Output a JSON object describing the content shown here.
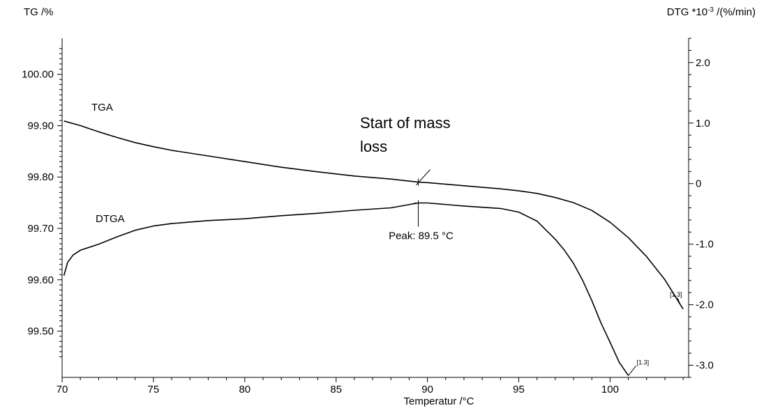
{
  "chart_data": {
    "type": "line",
    "title": "",
    "xlabel": "Temperatur /°C",
    "ylabel_left": "TG /%",
    "ylabel_right_main": "DTG *10",
    "ylabel_right_sup": "-3",
    "ylabel_right_unit": " /(%/min)",
    "xlim": [
      70,
      104.3
    ],
    "ylim_left": [
      99.41,
      100.07
    ],
    "ylim_right": [
      -3.2,
      2.4
    ],
    "x_ticks": [
      70,
      75,
      80,
      85,
      90,
      95,
      100
    ],
    "x_tick_labels": [
      "70",
      "75",
      "80",
      "85",
      "90",
      "95",
      "100"
    ],
    "y_left_ticks": [
      100.0,
      99.9,
      99.8,
      99.7,
      99.6,
      99.5
    ],
    "y_left_tick_labels": [
      "100.00",
      "99.90",
      "99.80",
      "99.70",
      "99.60",
      "99.50"
    ],
    "y_right_ticks": [
      2.0,
      1.0,
      0,
      -1.0,
      -2.0,
      -3.0
    ],
    "y_right_tick_labels": [
      "2.0",
      "1.0",
      "0",
      "-1.0",
      "-2.0",
      "-3.0"
    ],
    "grid": false,
    "series": [
      {
        "name": "TGA",
        "axis": "left",
        "x": [
          70.1,
          71,
          72,
          73,
          74,
          75,
          76,
          78,
          80,
          82,
          84,
          86,
          88,
          89.5,
          90,
          92,
          94,
          95,
          96,
          97,
          98,
          99,
          100,
          101,
          102,
          103,
          104
        ],
        "y": [
          99.909,
          99.9,
          99.888,
          99.877,
          99.867,
          99.859,
          99.852,
          99.841,
          99.83,
          99.819,
          99.81,
          99.802,
          99.796,
          99.79,
          99.789,
          99.783,
          99.777,
          99.773,
          99.768,
          99.76,
          99.75,
          99.735,
          99.712,
          99.682,
          99.645,
          99.6,
          99.543
        ]
      },
      {
        "name": "DTGA",
        "axis": "right",
        "x": [
          70.1,
          70.3,
          70.6,
          71,
          72,
          73,
          74,
          75,
          76,
          78,
          80,
          82,
          84,
          86,
          88,
          89.5,
          90,
          92,
          94,
          95,
          96,
          96.5,
          97,
          97.5,
          98,
          98.5,
          99,
          99.5,
          100,
          100.5,
          101
        ],
        "y": [
          -1.52,
          -1.3,
          -1.18,
          -1.1,
          -1.0,
          -0.88,
          -0.77,
          -0.7,
          -0.66,
          -0.61,
          -0.58,
          -0.53,
          -0.49,
          -0.44,
          -0.4,
          -0.32,
          -0.32,
          -0.37,
          -0.41,
          -0.47,
          -0.62,
          -0.77,
          -0.92,
          -1.1,
          -1.32,
          -1.6,
          -1.93,
          -2.3,
          -2.62,
          -2.95,
          -3.17
        ]
      }
    ],
    "annotations": {
      "tga_label": "TGA",
      "dtga_label": "DTGA",
      "mass_loss_line1": "Start of mass",
      "mass_loss_line2": "loss",
      "mass_loss_x": 89.5,
      "peak_label": "Peak: 89.5 °C",
      "peak_x": 89.5,
      "peak_y": -0.32,
      "end_label_tga": "[1.3]",
      "end_label_dtga": "[1.3]"
    }
  }
}
